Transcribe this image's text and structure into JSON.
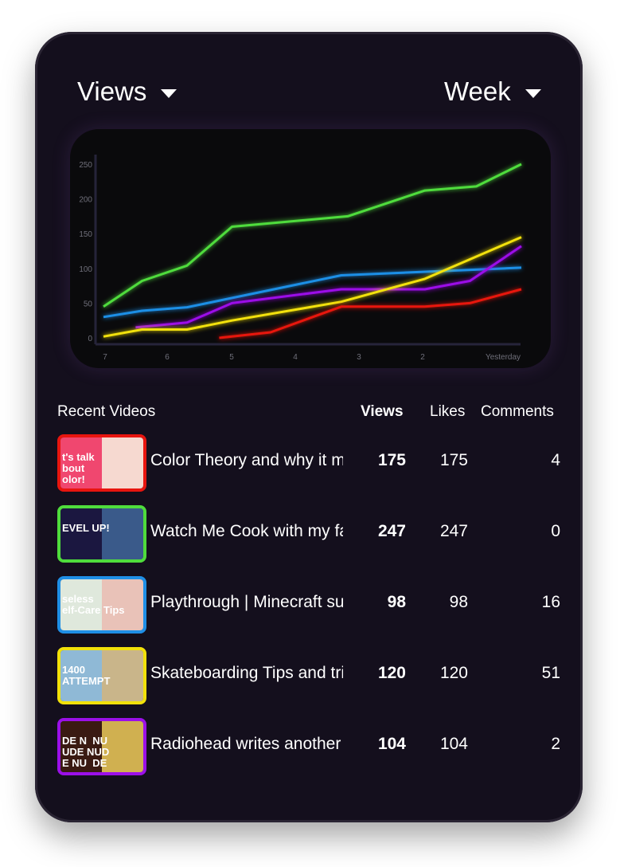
{
  "header": {
    "metric": "Views",
    "period": "Week"
  },
  "chart_data": {
    "type": "line",
    "x": [
      "7",
      "6",
      "5",
      "4",
      "3",
      "2",
      "Yesterday"
    ],
    "yticks": [
      0,
      50,
      100,
      150,
      200,
      250
    ],
    "ylim": [
      0,
      260
    ],
    "series": [
      {
        "color": "#4fdc3c",
        "points": [
          [
            0,
            45
          ],
          [
            0.6,
            82
          ],
          [
            1.3,
            104
          ],
          [
            2,
            160
          ],
          [
            3.8,
            175
          ],
          [
            5,
            212
          ],
          [
            5.8,
            218
          ],
          [
            6.5,
            250
          ]
        ]
      },
      {
        "color": "#1f8fe6",
        "points": [
          [
            0,
            30
          ],
          [
            0.6,
            39
          ],
          [
            1.3,
            44
          ],
          [
            3.7,
            90
          ],
          [
            6.5,
            101
          ]
        ]
      },
      {
        "color": "#9b10e8",
        "points": [
          [
            0.5,
            15
          ],
          [
            1.3,
            22
          ],
          [
            2,
            50
          ],
          [
            3.7,
            70
          ],
          [
            5,
            70
          ],
          [
            5.7,
            82
          ],
          [
            6.5,
            132
          ]
        ]
      },
      {
        "color": "#f2e10a",
        "points": [
          [
            0,
            2
          ],
          [
            0.6,
            12
          ],
          [
            1.3,
            12
          ],
          [
            2,
            25
          ],
          [
            3.7,
            52
          ],
          [
            5,
            85
          ],
          [
            6.5,
            145
          ]
        ]
      },
      {
        "color": "#e8150f",
        "points": [
          [
            1.8,
            0
          ],
          [
            2.6,
            8
          ],
          [
            3.7,
            45
          ],
          [
            5,
            45
          ],
          [
            5.7,
            50
          ],
          [
            6.5,
            70
          ]
        ]
      }
    ]
  },
  "table": {
    "headers": {
      "videos": "Recent Videos",
      "views": "Views",
      "likes": "Likes",
      "comments": "Comments"
    },
    "rows": [
      {
        "title": "Color Theory and why it matters",
        "views": "175",
        "likes": "175",
        "comments": "4",
        "thumb_text": "t's talk\nbout\nolor!",
        "border": "#e8150f",
        "c1": "#f0476f",
        "c2": "#f6d9d0"
      },
      {
        "title": "Watch Me Cook with my family",
        "views": "247",
        "likes": "247",
        "comments": "0",
        "thumb_text": "EVEL UP!",
        "border": "#4fdc3c",
        "c1": "#1b1740",
        "c2": "#3a5a8a"
      },
      {
        "title": "Playthrough | Minecraft survival",
        "views": "98",
        "likes": "98",
        "comments": "16",
        "thumb_text": "seless\nelf-Care Tips",
        "border": "#1f8fe6",
        "c1": "#dfe8dc",
        "c2": "#e9c2b8"
      },
      {
        "title": "Skateboarding Tips and tricks",
        "views": "120",
        "likes": "120",
        "comments": "51",
        "thumb_text": "1400\nATTEMPT",
        "border": "#f2e10a",
        "c1": "#8fb9d6",
        "c2": "#c9b58a"
      },
      {
        "title": "Radiohead writes another song",
        "views": "104",
        "likes": "104",
        "comments": "2",
        "thumb_text": "DE N  NU\nUDE NUD\nE NU  DE",
        "border": "#9b10e8",
        "c1": "#3a1a12",
        "c2": "#d0b050"
      }
    ]
  }
}
